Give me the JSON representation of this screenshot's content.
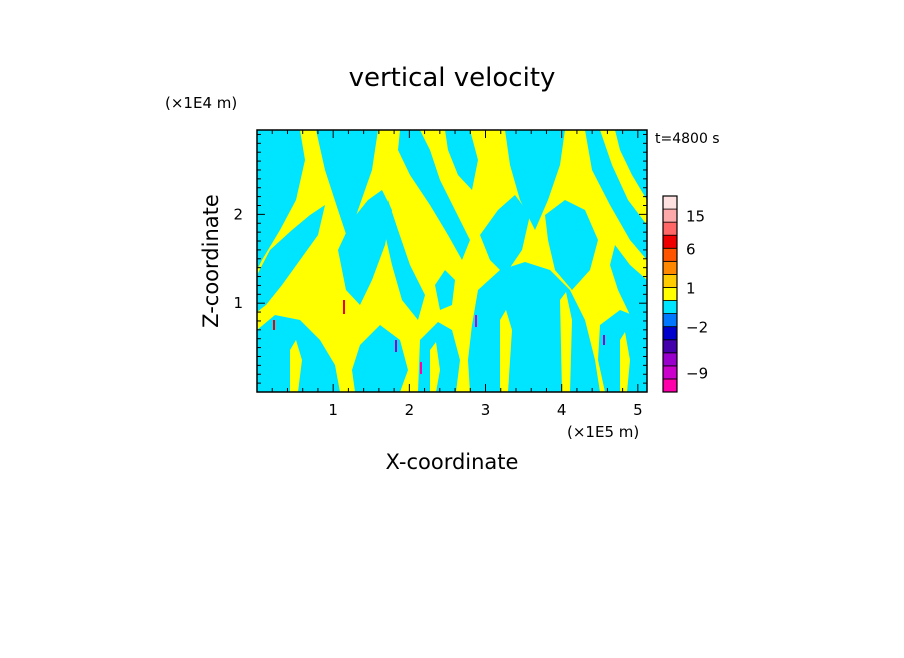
{
  "chart_data": {
    "type": "heatmap",
    "title": "vertical velocity",
    "xlabel": "X-coordinate",
    "ylabel": "Z-coordinate",
    "x_scale_label": "(×1E5 m)",
    "y_scale_label": "(×1E4 m)",
    "time_label": "t=4800 s",
    "xlim": [
      0,
      5.12
    ],
    "ylim": [
      0,
      2.95
    ],
    "x_ticks": [
      1,
      2,
      3,
      4,
      5
    ],
    "y_ticks": [
      1,
      2
    ],
    "x_tick_labels": [
      "1",
      "2",
      "3",
      "4",
      "5"
    ],
    "y_tick_labels": [
      "1",
      "2"
    ],
    "dominant_colors": {
      "positive": "#ffff00",
      "negative": "#00e5ff"
    },
    "colorbar": {
      "levels": [
        {
          "color": "#ff00aa"
        },
        {
          "color": "#cc00cc"
        },
        {
          "color": "#9900cc"
        },
        {
          "color": "#4400aa"
        },
        {
          "color": "#0000cc"
        },
        {
          "color": "#0077ff"
        },
        {
          "color": "#00e5ff"
        },
        {
          "color": "#ffff00"
        },
        {
          "color": "#ffcc00"
        },
        {
          "color": "#ff8800"
        },
        {
          "color": "#ff5500"
        },
        {
          "color": "#ee0000"
        },
        {
          "color": "#ff6666"
        },
        {
          "color": "#ffaaaa"
        },
        {
          "color": "#ffe0e0"
        }
      ],
      "labels": [
        {
          "value": -9,
          "text": "−9",
          "level": 1
        },
        {
          "value": -2,
          "text": "−2",
          "level": 4.5
        },
        {
          "value": 1,
          "text": "1",
          "level": 7.5
        },
        {
          "value": 6,
          "text": "6",
          "level": 10.5
        },
        {
          "value": 15,
          "text": "15",
          "level": 13
        }
      ]
    }
  }
}
